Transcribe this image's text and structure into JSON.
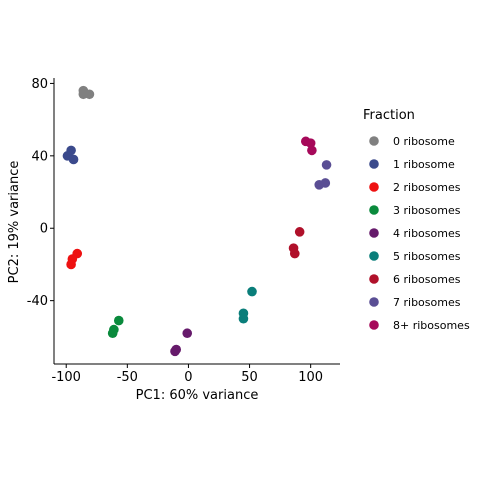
{
  "chart_data": {
    "type": "scatter",
    "title": "",
    "xlabel": "PC1: 60% variance",
    "ylabel": "PC2: 19% variance",
    "xlim": [
      -110,
      124
    ],
    "ylim": [
      -75,
      83
    ],
    "xticks": [
      -100,
      -50,
      0,
      50,
      100
    ],
    "yticks": [
      80,
      40,
      0,
      -40
    ],
    "xtick_labels": [
      "-100",
      "-50",
      "0",
      "50",
      "100"
    ],
    "ytick_labels": [
      "80",
      "40",
      "0",
      "-40"
    ],
    "grid": false,
    "legend": {
      "title": "Fraction",
      "position": "right"
    },
    "series": [
      {
        "name": "0 ribosome",
        "color": "#808080",
        "points": [
          [
            -86,
            76
          ],
          [
            -86,
            74
          ],
          [
            -81,
            74
          ]
        ]
      },
      {
        "name": "1 ribosome",
        "color": "#3B4A8C",
        "points": [
          [
            -96,
            43
          ],
          [
            -99,
            40
          ],
          [
            -94,
            38
          ]
        ]
      },
      {
        "name": "2 ribosomes",
        "color": "#EE1111",
        "points": [
          [
            -91,
            -14
          ],
          [
            -95,
            -17
          ],
          [
            -96,
            -20
          ]
        ]
      },
      {
        "name": "3 ribosomes",
        "color": "#0A8A3C",
        "points": [
          [
            -57,
            -51
          ],
          [
            -61,
            -56
          ],
          [
            -62,
            -58
          ]
        ]
      },
      {
        "name": "4 ribosomes",
        "color": "#661A6B",
        "points": [
          [
            -1,
            -58
          ],
          [
            -10,
            -67
          ],
          [
            -11,
            -68
          ]
        ]
      },
      {
        "name": "5 ribosomes",
        "color": "#0A7E7A",
        "points": [
          [
            52,
            -35
          ],
          [
            45,
            -47
          ],
          [
            45,
            -50
          ]
        ]
      },
      {
        "name": "6 ribosomes",
        "color": "#B0102A",
        "points": [
          [
            91,
            -2
          ],
          [
            86,
            -11
          ],
          [
            87,
            -14
          ]
        ]
      },
      {
        "name": "7 ribosomes",
        "color": "#5A4E94",
        "points": [
          [
            113,
            35
          ],
          [
            112,
            25
          ],
          [
            107,
            24
          ]
        ]
      },
      {
        "name": "8+ ribosomes",
        "color": "#A6095A",
        "points": [
          [
            96,
            48
          ],
          [
            100,
            47
          ],
          [
            101,
            43
          ]
        ]
      }
    ]
  }
}
